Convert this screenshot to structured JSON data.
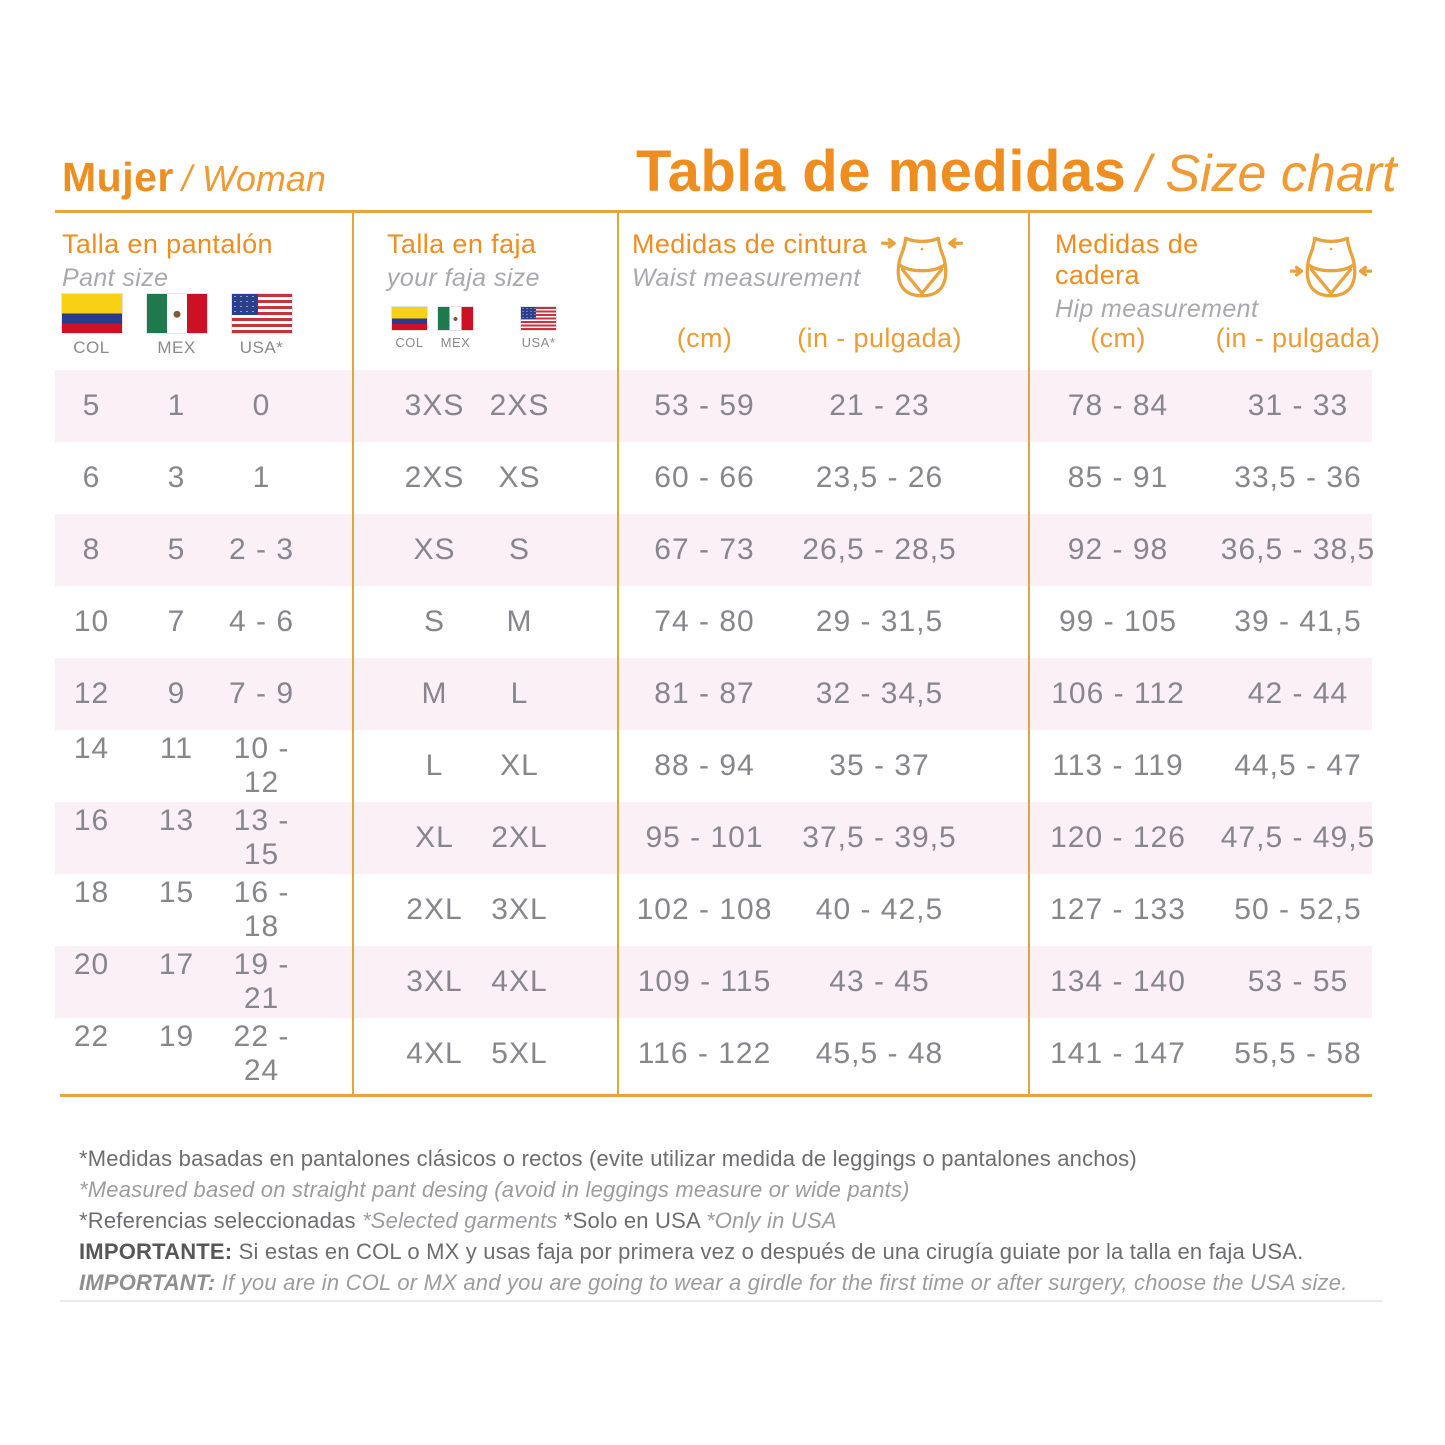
{
  "colors": {
    "accent_orange": "#EF8E20",
    "rule_line": "#E8A23E",
    "row_pink": "#FAF0F5",
    "data_text": "#87868B"
  },
  "titles": {
    "left_bold": "Mujer",
    "left_italic": "/ Woman",
    "right_bold": "Tabla de medidas",
    "right_italic": "/ Size chart"
  },
  "columns": {
    "pant": {
      "title": "Talla en pantalón",
      "subtitle": "Pant size",
      "flag_labels": [
        "COL",
        "MEX",
        "USA*"
      ]
    },
    "faja": {
      "title": "Talla en faja",
      "subtitle": "your faja size",
      "flag_labels": [
        "COL",
        "MEX",
        "USA*"
      ]
    },
    "waist": {
      "title": "Medidas de cintura",
      "subtitle": "Waist measurement",
      "icon": "waist-measurement-figure",
      "cm_label": "(cm)",
      "in_label": "(in - pulgada)"
    },
    "hip": {
      "title": "Medidas de cadera",
      "subtitle": "Hip measurement",
      "icon": "hip-measurement-figure",
      "cm_label": "(cm)",
      "in_label": "(in - pulgada)"
    }
  },
  "table": {
    "rows": [
      {
        "pant": [
          "5",
          "1",
          "0"
        ],
        "faja": [
          "3XS",
          "2XS"
        ],
        "waist": [
          "53 - 59",
          "21 - 23"
        ],
        "hip": [
          "78 - 84",
          "31 - 33"
        ]
      },
      {
        "pant": [
          "6",
          "3",
          "1"
        ],
        "faja": [
          "2XS",
          "XS"
        ],
        "waist": [
          "60 - 66",
          "23,5 - 26"
        ],
        "hip": [
          "85 - 91",
          "33,5 - 36"
        ]
      },
      {
        "pant": [
          "8",
          "5",
          "2 - 3"
        ],
        "faja": [
          "XS",
          "S"
        ],
        "waist": [
          "67 - 73",
          "26,5 - 28,5"
        ],
        "hip": [
          "92 - 98",
          "36,5 - 38,5"
        ]
      },
      {
        "pant": [
          "10",
          "7",
          "4 - 6"
        ],
        "faja": [
          "S",
          "M"
        ],
        "waist": [
          "74 - 80",
          "29 - 31,5"
        ],
        "hip": [
          "99 - 105",
          "39 - 41,5"
        ]
      },
      {
        "pant": [
          "12",
          "9",
          "7 - 9"
        ],
        "faja": [
          "M",
          "L"
        ],
        "waist": [
          "81 - 87",
          "32 - 34,5"
        ],
        "hip": [
          "106 - 112",
          "42 - 44"
        ]
      },
      {
        "pant": [
          "14",
          "11",
          "10 - 12"
        ],
        "faja": [
          "L",
          "XL"
        ],
        "waist": [
          "88 - 94",
          "35 - 37"
        ],
        "hip": [
          "113 - 119",
          "44,5 - 47"
        ]
      },
      {
        "pant": [
          "16",
          "13",
          "13 - 15"
        ],
        "faja": [
          "XL",
          "2XL"
        ],
        "waist": [
          "95 - 101",
          "37,5 - 39,5"
        ],
        "hip": [
          "120 - 126",
          "47,5 - 49,5"
        ]
      },
      {
        "pant": [
          "18",
          "15",
          "16 - 18"
        ],
        "faja": [
          "2XL",
          "3XL"
        ],
        "waist": [
          "102 - 108",
          "40 - 42,5"
        ],
        "hip": [
          "127 - 133",
          "50 - 52,5"
        ]
      },
      {
        "pant": [
          "20",
          "17",
          "19 - 21"
        ],
        "faja": [
          "3XL",
          "4XL"
        ],
        "waist": [
          "109 - 115",
          "43 - 45"
        ],
        "hip": [
          "134 - 140",
          "53 - 55"
        ]
      },
      {
        "pant": [
          "22",
          "19",
          "22 - 24"
        ],
        "faja": [
          "4XL",
          "5XL"
        ],
        "waist": [
          "116 - 122",
          "45,5 - 48"
        ],
        "hip": [
          "141 - 147",
          "55,5 - 58"
        ]
      }
    ]
  },
  "notes": [
    {
      "parts": [
        {
          "style": "dark",
          "text": "*Medidas basadas en pantalones clásicos o rectos (evite utilizar medida de leggings o pantalones anchos)"
        }
      ]
    },
    {
      "parts": [
        {
          "style": "light-italic",
          "text": "*Measured based on straight pant desing (avoid in leggings measure or wide pants)"
        }
      ]
    },
    {
      "parts": [
        {
          "style": "dark",
          "text": "*Referencias seleccionadas "
        },
        {
          "style": "light-italic",
          "text": "*Selected garments "
        },
        {
          "style": "dark",
          "text": "*Solo en USA "
        },
        {
          "style": "light-italic",
          "text": "*Only in USA"
        }
      ]
    },
    {
      "parts": [
        {
          "style": "dark-bold",
          "text": "IMPORTANTE: "
        },
        {
          "style": "dark",
          "text": "Si estas en COL o MX y usas faja por primera vez o después de una cirugía guiate por la talla en faja USA."
        }
      ]
    },
    {
      "parts": [
        {
          "style": "light-italic-bold",
          "text": "IMPORTANT: "
        },
        {
          "style": "light-italic",
          "text": "If you are in COL or MX and you are going to wear a girdle for the first time or after surgery, choose the USA size."
        }
      ]
    }
  ]
}
